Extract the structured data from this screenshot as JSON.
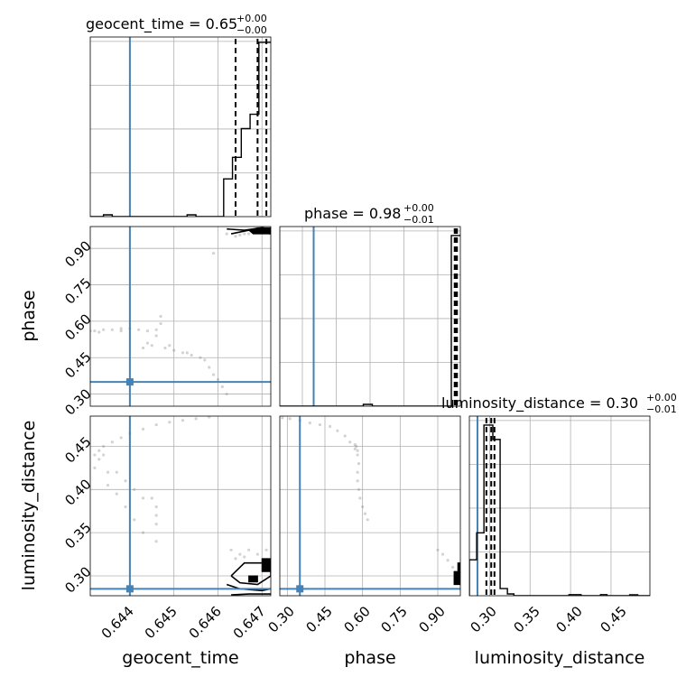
{
  "colors": {
    "truth": "#4682b4",
    "hist": "#000000",
    "grid": "#b0b0b0",
    "scatter": "#808080"
  },
  "chart_data": {
    "type": "corner",
    "parameters": [
      "geocent_time",
      "phase",
      "luminosity_distance"
    ],
    "truth": {
      "geocent_time": 0.644,
      "phase": 0.35,
      "luminosity_distance": 0.285
    },
    "grid": true,
    "panels": [
      {
        "kind": "hist",
        "param": "geocent_time",
        "title": {
          "main": "geocent_time = 0.65",
          "sup": "+0.00",
          "sub": "−0.00"
        },
        "xlim": [
          0.6431,
          0.6472
        ],
        "steps": [
          {
            "x": 0.6431,
            "h": 0.0
          },
          {
            "x": 0.6434,
            "h": 0.01
          },
          {
            "x": 0.6436,
            "h": 0.0
          },
          {
            "x": 0.6452,
            "h": 0.0
          },
          {
            "x": 0.6453,
            "h": 0.01
          },
          {
            "x": 0.6455,
            "h": 0.0
          },
          {
            "x": 0.64613,
            "h": 0.21
          },
          {
            "x": 0.64633,
            "h": 0.33
          },
          {
            "x": 0.64653,
            "h": 0.49
          },
          {
            "x": 0.64673,
            "h": 0.57
          },
          {
            "x": 0.64693,
            "h": 0.97
          },
          {
            "x": 0.64713,
            "h": 0.97
          }
        ],
        "quantiles": [
          0.6464,
          0.6469,
          0.6471
        ]
      },
      {
        "kind": "hist",
        "param": "phase",
        "title": {
          "main": "phase = 0.98",
          "sup": "+0.00",
          "sub": "−0.01"
        },
        "xlim": [
          0.2,
          1.0
        ],
        "steps": [
          {
            "x": 0.2,
            "h": 0.0
          },
          {
            "x": 0.57,
            "h": 0.01
          },
          {
            "x": 0.61,
            "h": 0.0
          },
          {
            "x": 0.96,
            "h": 0.95
          },
          {
            "x": 1.0,
            "h": 0.95
          }
        ],
        "quantiles": [
          0.975,
          0.98,
          0.985
        ]
      },
      {
        "kind": "hist",
        "param": "luminosity_distance",
        "title": {
          "main": "luminosity_distance = 0.30",
          "sup": "+0.00",
          "sub": "−0.01"
        },
        "xlim": [
          0.275,
          0.498
        ],
        "steps": [
          {
            "x": 0.275,
            "h": 0.2
          },
          {
            "x": 0.284,
            "h": 0.35
          },
          {
            "x": 0.293,
            "h": 0.95
          },
          {
            "x": 0.304,
            "h": 0.87
          },
          {
            "x": 0.313,
            "h": 0.04
          },
          {
            "x": 0.322,
            "h": 0.01
          },
          {
            "x": 0.33,
            "h": 0.0
          },
          {
            "x": 0.398,
            "h": 0.006
          },
          {
            "x": 0.413,
            "h": 0.0
          },
          {
            "x": 0.437,
            "h": 0.006
          },
          {
            "x": 0.445,
            "h": 0.0
          },
          {
            "x": 0.473,
            "h": 0.005
          },
          {
            "x": 0.483,
            "h": 0.0
          },
          {
            "x": 0.498,
            "h": 0.0
          }
        ],
        "quantiles": [
          0.296,
          0.302,
          0.306
        ]
      },
      {
        "kind": "scatter",
        "xparam": "geocent_time",
        "yparam": "phase",
        "xlim": [
          0.6431,
          0.6472
        ],
        "ylim": [
          0.25,
          0.99
        ],
        "points": [
          [
            0.6431,
            0.56
          ],
          [
            0.6432,
            0.56
          ],
          [
            0.6434,
            0.565
          ],
          [
            0.6436,
            0.565
          ],
          [
            0.6438,
            0.57
          ],
          [
            0.644,
            0.57
          ],
          [
            0.6442,
            0.565
          ],
          [
            0.6444,
            0.56
          ],
          [
            0.6438,
            0.56
          ],
          [
            0.6433,
            0.555
          ],
          [
            0.6446,
            0.565
          ],
          [
            0.6447,
            0.59
          ],
          [
            0.6447,
            0.62
          ],
          [
            0.6446,
            0.54
          ],
          [
            0.6444,
            0.51
          ],
          [
            0.6443,
            0.49
          ],
          [
            0.6445,
            0.5
          ],
          [
            0.6448,
            0.49
          ],
          [
            0.645,
            0.48
          ],
          [
            0.6452,
            0.47
          ],
          [
            0.6454,
            0.46
          ],
          [
            0.6456,
            0.45
          ],
          [
            0.6457,
            0.44
          ],
          [
            0.6458,
            0.41
          ],
          [
            0.6459,
            0.38
          ],
          [
            0.646,
            0.36
          ],
          [
            0.6461,
            0.33
          ],
          [
            0.6462,
            0.3
          ],
          [
            0.6453,
            0.47
          ],
          [
            0.6449,
            0.5
          ],
          [
            0.6459,
            0.88
          ],
          [
            0.6462,
            0.96
          ],
          [
            0.6464,
            0.95
          ],
          [
            0.6466,
            0.96
          ],
          [
            0.6468,
            0.975
          ],
          [
            0.647,
            0.975
          ],
          [
            0.6471,
            0.97
          ],
          [
            0.6465,
            0.955
          ],
          [
            0.6467,
            0.96
          ]
        ],
        "contours": [
          {
            "kind": "filled",
            "pts": [
              [
                0.6468,
                0.96
              ],
              [
                0.6472,
                0.96
              ],
              [
                0.6472,
                0.985
              ],
              [
                0.6469,
                0.985
              ],
              [
                0.6467,
                0.975
              ]
            ]
          },
          {
            "kind": "line",
            "pts": [
              [
                0.6462,
                0.98
              ],
              [
                0.6466,
                0.975
              ],
              [
                0.647,
                0.985
              ],
              [
                0.6472,
                0.98
              ]
            ]
          },
          {
            "kind": "line",
            "pts": [
              [
                0.6463,
                0.96
              ],
              [
                0.6467,
                0.975
              ],
              [
                0.6472,
                0.96
              ]
            ]
          }
        ]
      },
      {
        "kind": "scatter",
        "xparam": "geocent_time",
        "yparam": "luminosity_distance",
        "xlim": [
          0.6431,
          0.6472
        ],
        "ylim": [
          0.277,
          0.485
        ],
        "points": [
          [
            0.6432,
            0.44
          ],
          [
            0.6433,
            0.445
          ],
          [
            0.6434,
            0.44
          ],
          [
            0.6433,
            0.435
          ],
          [
            0.6434,
            0.45
          ],
          [
            0.6432,
            0.425
          ],
          [
            0.6435,
            0.42
          ],
          [
            0.6437,
            0.42
          ],
          [
            0.6439,
            0.41
          ],
          [
            0.6441,
            0.4
          ],
          [
            0.6443,
            0.39
          ],
          [
            0.6445,
            0.39
          ],
          [
            0.6446,
            0.38
          ],
          [
            0.6446,
            0.36
          ],
          [
            0.6446,
            0.34
          ],
          [
            0.6436,
            0.455
          ],
          [
            0.6438,
            0.46
          ],
          [
            0.644,
            0.465
          ],
          [
            0.6443,
            0.47
          ],
          [
            0.6446,
            0.475
          ],
          [
            0.6449,
            0.478
          ],
          [
            0.6452,
            0.48
          ],
          [
            0.6455,
            0.482
          ],
          [
            0.6458,
            0.484
          ],
          [
            0.6435,
            0.405
          ],
          [
            0.6437,
            0.395
          ],
          [
            0.6439,
            0.38
          ],
          [
            0.6441,
            0.365
          ],
          [
            0.6443,
            0.35
          ],
          [
            0.6446,
            0.37
          ],
          [
            0.6463,
            0.33
          ],
          [
            0.6465,
            0.325
          ],
          [
            0.6467,
            0.33
          ],
          [
            0.6469,
            0.325
          ],
          [
            0.6471,
            0.33
          ],
          [
            0.6464,
            0.32
          ],
          [
            0.6466,
            0.322
          ]
        ],
        "contours": [
          {
            "kind": "filled",
            "pts": [
              [
                0.647,
                0.305
              ],
              [
                0.6472,
                0.305
              ],
              [
                0.6472,
                0.32
              ],
              [
                0.647,
                0.32
              ]
            ]
          },
          {
            "kind": "filled",
            "pts": [
              [
                0.6467,
                0.293
              ],
              [
                0.6469,
                0.293
              ],
              [
                0.6469,
                0.3
              ],
              [
                0.6467,
                0.3
              ]
            ]
          },
          {
            "kind": "line",
            "pts": [
              [
                0.6463,
                0.3
              ],
              [
                0.6466,
                0.315
              ],
              [
                0.6469,
                0.315
              ],
              [
                0.6472,
                0.315
              ],
              [
                0.6472,
                0.3
              ],
              [
                0.6469,
                0.29
              ],
              [
                0.6465,
                0.292
              ],
              [
                0.6463,
                0.3
              ]
            ]
          },
          {
            "kind": "line",
            "pts": [
              [
                0.6462,
                0.29
              ],
              [
                0.6465,
                0.285
              ],
              [
                0.647,
                0.283
              ],
              [
                0.6472,
                0.285
              ]
            ]
          },
          {
            "kind": "line",
            "pts": [
              [
                0.6463,
                0.278
              ],
              [
                0.6467,
                0.279
              ],
              [
                0.6472,
                0.279
              ]
            ]
          }
        ]
      },
      {
        "kind": "scatter",
        "xparam": "phase",
        "yparam": "luminosity_distance",
        "xlim": [
          0.27,
          0.99
        ],
        "ylim": [
          0.277,
          0.485
        ],
        "points": [
          [
            0.28,
            0.483
          ],
          [
            0.31,
            0.482
          ],
          [
            0.35,
            0.48
          ],
          [
            0.39,
            0.477
          ],
          [
            0.43,
            0.475
          ],
          [
            0.47,
            0.473
          ],
          [
            0.5,
            0.468
          ],
          [
            0.53,
            0.462
          ],
          [
            0.55,
            0.455
          ],
          [
            0.57,
            0.447
          ],
          [
            0.58,
            0.44
          ],
          [
            0.585,
            0.43
          ],
          [
            0.58,
            0.42
          ],
          [
            0.58,
            0.41
          ],
          [
            0.585,
            0.4
          ],
          [
            0.59,
            0.39
          ],
          [
            0.6,
            0.38
          ],
          [
            0.61,
            0.372
          ],
          [
            0.62,
            0.365
          ],
          [
            0.58,
            0.445
          ],
          [
            0.575,
            0.45
          ],
          [
            0.57,
            0.452
          ],
          [
            0.9,
            0.33
          ],
          [
            0.92,
            0.325
          ],
          [
            0.94,
            0.318
          ],
          [
            0.96,
            0.31
          ],
          [
            0.97,
            0.305
          ]
        ],
        "contours": [
          {
            "kind": "filled",
            "pts": [
              [
                0.965,
                0.29
              ],
              [
                0.99,
                0.29
              ],
              [
                0.99,
                0.305
              ],
              [
                0.965,
                0.305
              ]
            ]
          },
          {
            "kind": "filled",
            "pts": [
              [
                0.98,
                0.305
              ],
              [
                0.99,
                0.305
              ],
              [
                0.99,
                0.315
              ],
              [
                0.98,
                0.315
              ]
            ]
          }
        ]
      }
    ],
    "axis_labels": {
      "geocent_time": "geocent_time",
      "phase": "phase",
      "luminosity_distance": "luminosity_distance"
    },
    "ticks": {
      "geocent_time": [
        "0.644",
        "0.645",
        "0.646",
        "0.647"
      ],
      "phase_x": [
        "0.30",
        "0.45",
        "0.60",
        "0.75",
        "0.90"
      ],
      "phase_y": [
        "0.30",
        "0.45",
        "0.60",
        "0.75",
        "0.90"
      ],
      "luminosity_distance_x": [
        "0.30",
        "0.35",
        "0.40",
        "0.45"
      ],
      "luminosity_distance_y": [
        "0.30",
        "0.35",
        "0.40",
        "0.45"
      ]
    }
  }
}
